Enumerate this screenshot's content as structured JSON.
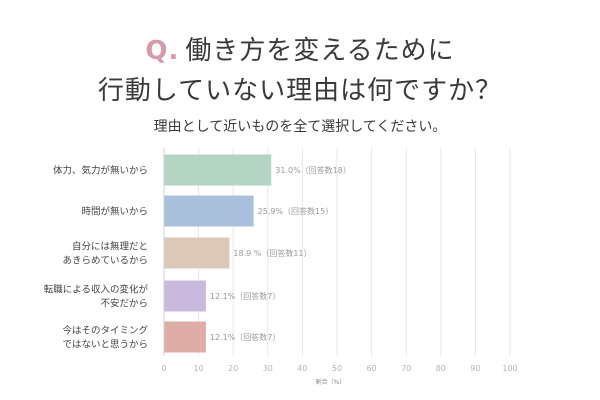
{
  "header": {
    "q_mark": "Q.",
    "title_line1": "働き方を変えるために",
    "title_line2": "行動していない理由は何ですか？",
    "subtitle": "理由として近いものを全て選択してください。"
  },
  "chart_data": {
    "type": "bar",
    "orientation": "horizontal",
    "categories": [
      [
        "体力、気力が無いから"
      ],
      [
        "時間が無いから"
      ],
      [
        "自分には無理だと",
        "あきらめているから"
      ],
      [
        "転職による収入の変化が",
        "不安だから"
      ],
      [
        "今はそのタイミング",
        "ではないと思うから"
      ]
    ],
    "values": [
      31.0,
      25.9,
      18.9,
      12.1,
      12.1
    ],
    "data_labels": [
      "31.0%（回答数18）",
      "25.9%（回答数15）",
      "18.9 %（回答数11）",
      "12.1%（回答数7）",
      "12.1%（回答数7）"
    ],
    "bar_colors": [
      "#b5d5c4",
      "#a9bfdb",
      "#dcc8b8",
      "#c9b9dc",
      "#ddaca4"
    ],
    "xlabel": "割合（%）",
    "xlim": [
      0,
      100
    ],
    "x_ticks": [
      0,
      10,
      20,
      30,
      40,
      50,
      60,
      70,
      80,
      90,
      100
    ],
    "grid": true,
    "gridline_color": "#e6e6e6"
  }
}
